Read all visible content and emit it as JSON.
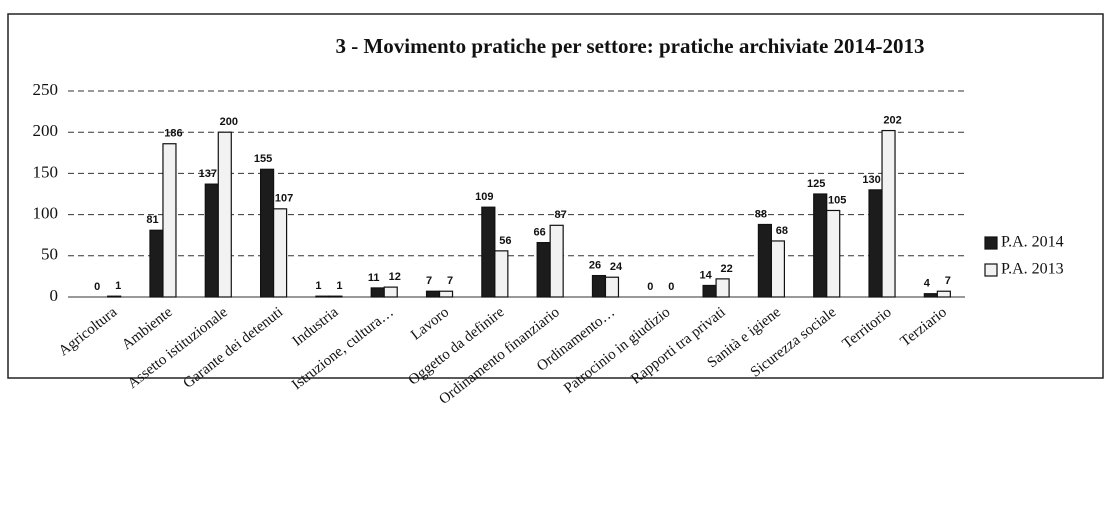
{
  "chart_data": {
    "type": "bar",
    "title": "3 - Movimento pratiche per settore: pratiche archiviate 2014-2013",
    "categories": [
      "Agricoltura",
      "Ambiente",
      "Assetto istituzionale",
      "Garante dei detenuti",
      "Industria",
      "Istruzione, cultura…",
      "Lavoro",
      "Oggetto da definire",
      "Ordinamento finanziario",
      "Ordinamento…",
      "Patrocinio in giudizio",
      "Rapporti tra privati",
      "Sanità e igiene",
      "Sicurezza sociale",
      "Territorio",
      "Terziario"
    ],
    "series": [
      {
        "name": "P.A. 2014",
        "color": "#1c1c1c",
        "values": [
          0,
          81,
          137,
          155,
          1,
          11,
          7,
          109,
          66,
          26,
          0,
          14,
          88,
          125,
          130,
          4
        ]
      },
      {
        "name": "P.A. 2013",
        "color": "#f2f2f2",
        "values": [
          1,
          186,
          200,
          107,
          1,
          12,
          7,
          56,
          87,
          24,
          0,
          22,
          68,
          105,
          202,
          7
        ]
      }
    ],
    "ylim": [
      0,
      250
    ],
    "yticks": [
      0,
      50,
      100,
      150,
      200,
      250
    ],
    "grid": true,
    "legend": "right"
  }
}
